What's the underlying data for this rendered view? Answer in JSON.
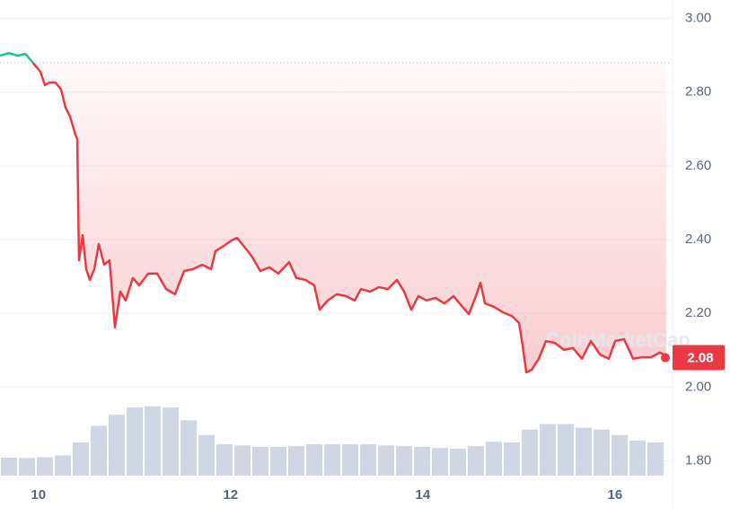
{
  "chart_data": {
    "type": "line",
    "watermark": "CoinMarketCap",
    "x": [
      9.6,
      9.693,
      9.787,
      9.862,
      9.927,
      10.021,
      10.067,
      10.114,
      10.179,
      10.236,
      10.282,
      10.329,
      10.385,
      10.404,
      10.422,
      10.46,
      10.497,
      10.535,
      10.581,
      10.628,
      10.684,
      10.74,
      10.796,
      10.852,
      10.908,
      10.983,
      11.049,
      11.142,
      11.236,
      11.329,
      11.422,
      11.516,
      11.609,
      11.703,
      11.796,
      11.843,
      11.918,
      12.011,
      12.067,
      12.142,
      12.217,
      12.31,
      12.404,
      12.497,
      12.609,
      12.684,
      12.778,
      12.871,
      12.927,
      13.011,
      13.105,
      13.198,
      13.292,
      13.357,
      13.45,
      13.544,
      13.637,
      13.731,
      13.806,
      13.88,
      13.955,
      14.039,
      14.133,
      14.226,
      14.32,
      14.413,
      14.479,
      14.553,
      14.6,
      14.647,
      14.74,
      14.834,
      14.927,
      15.002,
      15.039,
      15.077,
      15.133,
      15.207,
      15.282,
      15.376,
      15.469,
      15.563,
      15.656,
      15.75,
      15.843,
      15.936,
      16.002,
      16.095,
      16.189,
      16.282,
      16.376,
      16.469,
      16.535
    ],
    "values": [
      2.899,
      2.906,
      2.899,
      2.904,
      2.885,
      2.855,
      2.819,
      2.826,
      2.826,
      2.807,
      2.758,
      2.734,
      2.685,
      2.673,
      2.344,
      2.412,
      2.32,
      2.291,
      2.32,
      2.388,
      2.332,
      2.344,
      2.162,
      2.259,
      2.235,
      2.296,
      2.276,
      2.308,
      2.308,
      2.266,
      2.252,
      2.315,
      2.32,
      2.332,
      2.32,
      2.369,
      2.381,
      2.398,
      2.405,
      2.381,
      2.356,
      2.315,
      2.325,
      2.308,
      2.339,
      2.296,
      2.291,
      2.276,
      2.21,
      2.235,
      2.252,
      2.247,
      2.235,
      2.266,
      2.259,
      2.271,
      2.266,
      2.291,
      2.259,
      2.21,
      2.247,
      2.235,
      2.242,
      2.227,
      2.247,
      2.218,
      2.198,
      2.247,
      2.283,
      2.227,
      2.218,
      2.203,
      2.193,
      2.174,
      2.113,
      2.04,
      2.047,
      2.077,
      2.125,
      2.12,
      2.101,
      2.106,
      2.077,
      2.125,
      2.089,
      2.077,
      2.125,
      2.13,
      2.077,
      2.081,
      2.081,
      2.094,
      2.084
    ],
    "color": "#ea3943",
    "color_above": "#16c784",
    "baseline": 2.88,
    "current_price": 2.08,
    "volume": {
      "type": "bar",
      "x": [
        9.693,
        9.88,
        10.067,
        10.254,
        10.441,
        10.628,
        10.815,
        11.002,
        11.189,
        11.376,
        11.563,
        11.75,
        11.936,
        12.123,
        12.31,
        12.497,
        12.684,
        12.871,
        13.058,
        13.245,
        13.432,
        13.619,
        13.806,
        13.993,
        14.179,
        14.366,
        14.553,
        14.74,
        14.927,
        15.114,
        15.301,
        15.488,
        15.675,
        15.862,
        16.049,
        16.236,
        16.422
      ],
      "values": [
        1.809,
        1.808,
        1.81,
        1.815,
        1.85,
        1.895,
        1.925,
        1.945,
        1.948,
        1.945,
        1.91,
        1.87,
        1.845,
        1.842,
        1.838,
        1.838,
        1.84,
        1.845,
        1.845,
        1.845,
        1.845,
        1.842,
        1.84,
        1.838,
        1.835,
        1.833,
        1.84,
        1.852,
        1.85,
        1.885,
        1.9,
        1.9,
        1.89,
        1.885,
        1.87,
        1.855,
        1.85
      ],
      "color": "#cfd6e4"
    },
    "xlim": [
      9.6,
      16.59
    ],
    "xticks": [
      10,
      12,
      14,
      16
    ],
    "ylim": [
      1.76,
      3.05
    ],
    "yticks": [
      {
        "value": 1.8,
        "label": "1.80"
      },
      {
        "value": 2.0,
        "label": "2.00"
      },
      {
        "value": 2.2,
        "label": "2.20"
      },
      {
        "value": 2.4,
        "label": "2.40"
      },
      {
        "value": 2.6,
        "label": "2.60"
      },
      {
        "value": 2.8,
        "label": "2.80"
      },
      {
        "value": 3.0,
        "label": "3.00"
      }
    ],
    "grid": true
  }
}
